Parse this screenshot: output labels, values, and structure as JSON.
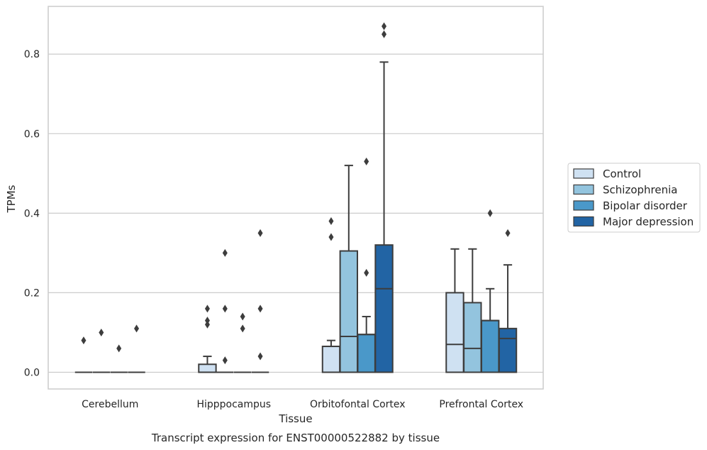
{
  "chart_data": {
    "type": "box",
    "xlabel": "Tissue",
    "ylabel": "TPMs",
    "caption": "Transcript expression for ENST00000522882 by tissue",
    "ylim": [
      -0.042,
      0.92
    ],
    "yticks": [
      "0.0",
      "0.2",
      "0.4",
      "0.6",
      "0.8"
    ],
    "grid": true,
    "legend_position": "right",
    "categories": [
      "Cerebellum",
      "Hipppocampus",
      "Orbitofontal Cortex",
      "Prefrontal Cortex"
    ],
    "series": [
      {
        "name": "Control",
        "color": "#cfe1f2",
        "boxes": [
          {
            "q1": 0,
            "median": 0,
            "q3": 0,
            "whislo": 0,
            "whishi": 0,
            "fliers": [
              0.08
            ]
          },
          {
            "q1": 0,
            "median": 0,
            "q3": 0.02,
            "whislo": 0,
            "whishi": 0.04,
            "fliers": [
              0.12,
              0.13,
              0.16
            ]
          },
          {
            "q1": 0,
            "median": 0.065,
            "q3": 0.065,
            "whislo": 0,
            "whishi": 0.08,
            "fliers": [
              0.34,
              0.38
            ]
          },
          {
            "q1": 0,
            "median": 0.07,
            "q3": 0.2,
            "whislo": 0,
            "whishi": 0.31,
            "fliers": []
          }
        ]
      },
      {
        "name": "Schizophrenia",
        "color": "#93c4de",
        "boxes": [
          {
            "q1": 0,
            "median": 0,
            "q3": 0,
            "whislo": 0,
            "whishi": 0,
            "fliers": [
              0.1
            ]
          },
          {
            "q1": 0,
            "median": 0,
            "q3": 0,
            "whislo": 0,
            "whishi": 0,
            "fliers": [
              0.03,
              0.16,
              0.3
            ]
          },
          {
            "q1": 0,
            "median": 0.09,
            "q3": 0.305,
            "whislo": 0,
            "whishi": 0.52,
            "fliers": []
          },
          {
            "q1": 0,
            "median": 0.06,
            "q3": 0.175,
            "whislo": 0,
            "whishi": 0.31,
            "fliers": []
          }
        ]
      },
      {
        "name": "Bipolar disorder",
        "color": "#4a98c9",
        "boxes": [
          {
            "q1": 0,
            "median": 0,
            "q3": 0,
            "whislo": 0,
            "whishi": 0,
            "fliers": [
              0.06
            ]
          },
          {
            "q1": 0,
            "median": 0,
            "q3": 0,
            "whislo": 0,
            "whishi": 0,
            "fliers": [
              0.11,
              0.14
            ]
          },
          {
            "q1": 0,
            "median": 0.095,
            "q3": 0.095,
            "whislo": 0,
            "whishi": 0.14,
            "fliers": [
              0.25,
              0.53
            ]
          },
          {
            "q1": 0,
            "median": 0.13,
            "q3": 0.13,
            "whislo": 0,
            "whishi": 0.21,
            "fliers": [
              0.4
            ]
          }
        ]
      },
      {
        "name": "Major depression",
        "color": "#2264a4",
        "boxes": [
          {
            "q1": 0,
            "median": 0,
            "q3": 0,
            "whislo": 0,
            "whishi": 0,
            "fliers": [
              0.11
            ]
          },
          {
            "q1": 0,
            "median": 0,
            "q3": 0,
            "whislo": 0,
            "whishi": 0,
            "fliers": [
              0.04,
              0.16,
              0.35
            ]
          },
          {
            "q1": 0,
            "median": 0.21,
            "q3": 0.32,
            "whislo": 0,
            "whishi": 0.78,
            "fliers": [
              0.85,
              0.87
            ]
          },
          {
            "q1": 0,
            "median": 0.085,
            "q3": 0.11,
            "whislo": 0,
            "whishi": 0.27,
            "fliers": [
              0.35
            ]
          }
        ]
      }
    ]
  }
}
